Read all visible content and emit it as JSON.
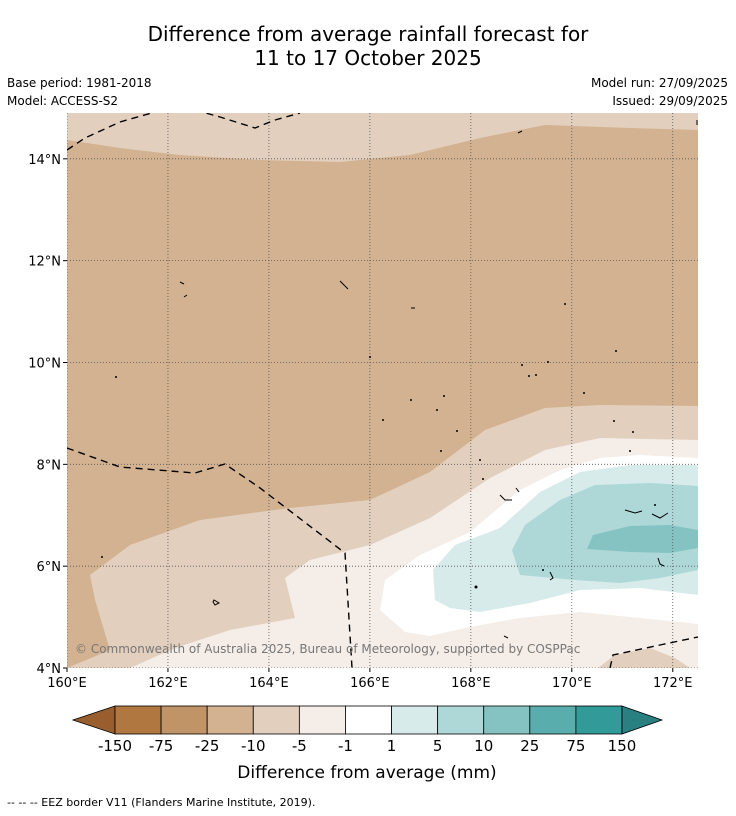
{
  "title": {
    "line1": "Difference from average rainfall forecast for",
    "line2": "11 to 17 October 2025"
  },
  "meta": {
    "base_period": "Base period: 1981-2018",
    "model": "Model: ACCESS-S2",
    "model_run": "Model run: 27/09/2025",
    "issued": "Issued: 29/09/2025"
  },
  "credit": "© Commonwealth of Australia 2025, Bureau of Meteorology, supported by COSPPac",
  "footnote": "--  --  -- EEZ border V11 (Flanders Marine Institute, 2019).",
  "chart_data": {
    "type": "heatmap",
    "description_kind": "filled contour map",
    "x_axis": {
      "range": [
        160,
        172.5
      ],
      "ticks": [
        160,
        162,
        164,
        166,
        168,
        170,
        172
      ],
      "tick_labels": [
        "160°E",
        "162°E",
        "164°E",
        "166°E",
        "168°E",
        "170°E",
        "172°E"
      ]
    },
    "y_axis": {
      "range": [
        4,
        14.9
      ],
      "ticks": [
        4,
        6,
        8,
        10,
        12,
        14
      ],
      "tick_labels": [
        "4°N",
        "6°N",
        "8°N",
        "10°N",
        "12°N",
        "14°N"
      ]
    },
    "grid": true,
    "colorbar": {
      "label": "Difference from average (mm)",
      "tick_labels": [
        "-150",
        "-75",
        "-25",
        "-10",
        "-5",
        "-1",
        "1",
        "5",
        "10",
        "25",
        "75",
        "150"
      ],
      "colors": [
        "#9a5e2e",
        "#b07840",
        "#c19468",
        "#d3b291",
        "#e3cfbe",
        "#f4ede8",
        "#ffffff",
        "#d6ebea",
        "#aed8d8",
        "#85c3c3",
        "#59adad",
        "#339a9a",
        "#2a8080"
      ],
      "extend": "both"
    },
    "regions": [
      {
        "class": "-10 to -5",
        "color": "#e3cfbe",
        "location": "northern band near 14.5°N"
      },
      {
        "class": "-25 to -10",
        "color": "#d3b291",
        "location": "most of domain north of about 8°N"
      },
      {
        "class": "-10 to -5",
        "color": "#e3cfbe",
        "location": "band from 161°E,6°N to 172°E,9°N"
      },
      {
        "class": "-5 to -1",
        "color": "#f4ede8",
        "location": "band around 165–172°E, 5–8°N"
      },
      {
        "class": "-1 to 1",
        "color": "#ffffff",
        "location": "around 166–172°E, 4.5–7.8°N"
      },
      {
        "class": "1 to 5",
        "color": "#d6ebea",
        "location": "167–172.5°E, 5–7.5°N"
      },
      {
        "class": "5 to 10",
        "color": "#aed8d8",
        "location": "169–172.5°E, 5.5–7.3°N"
      },
      {
        "class": "10 to 25",
        "color": "#85c3c3",
        "location": "around 170.5–172.5°E, 6.2°N"
      }
    ]
  }
}
